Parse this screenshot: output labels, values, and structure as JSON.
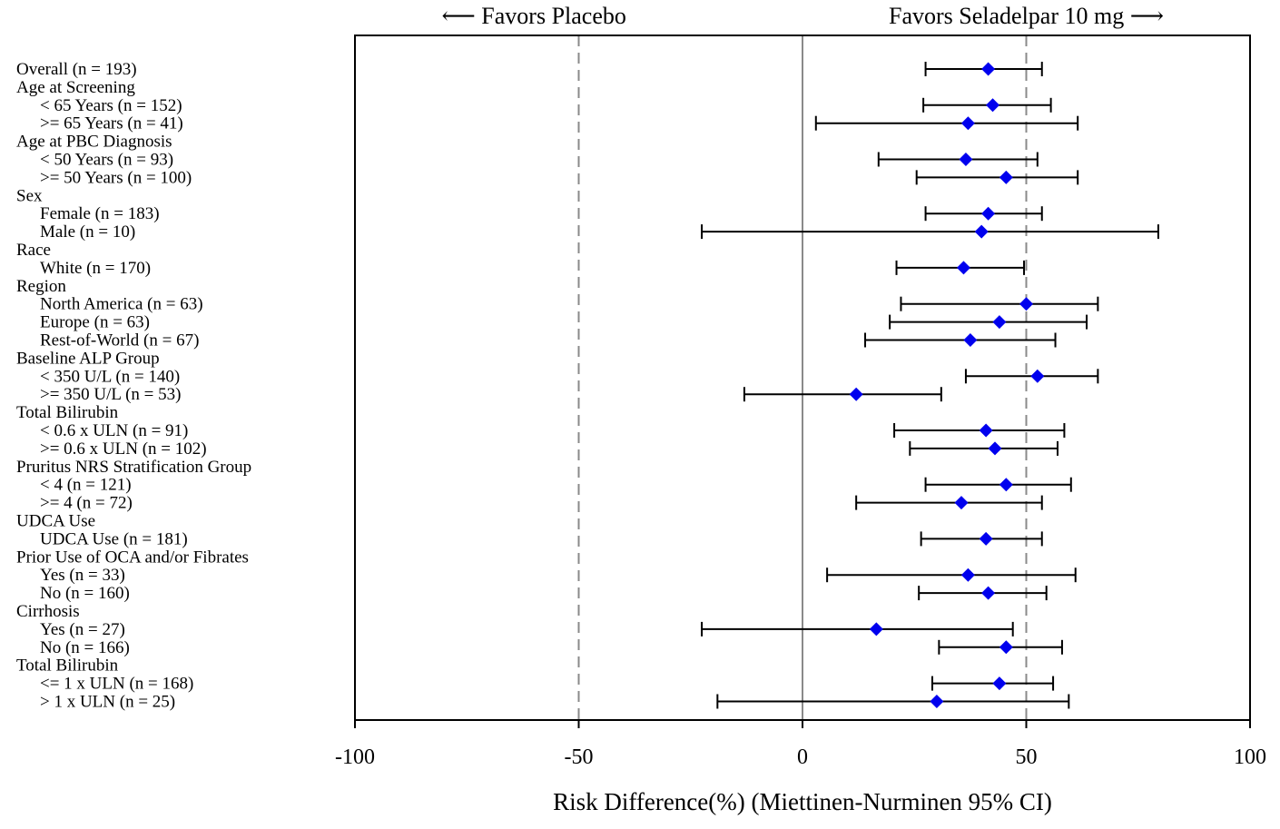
{
  "chart_data": {
    "type": "forest",
    "xlabel": "Risk Difference(%) (Miettinen-Nurminen 95% CI)",
    "xlim": [
      -100,
      100
    ],
    "xticks": [
      -100,
      -50,
      0,
      50,
      100
    ],
    "xtick_labels": [
      "-100",
      "-50",
      "0",
      "50",
      "100"
    ],
    "favors_left": "⟵ Favors Placebo",
    "favors_right": "Favors Seladelpar 10 mg ⟶",
    "reference_lines": [
      {
        "x": -50,
        "style": "dashed"
      },
      {
        "x": 0,
        "style": "solid"
      },
      {
        "x": 50,
        "style": "dashed"
      }
    ],
    "marker_color": "#0000ee",
    "rows": [
      {
        "label": "Overall (n = 193)",
        "indent": 0,
        "est": 41.5,
        "lo": 27.5,
        "hi": 53.5
      },
      {
        "label": "Age at Screening",
        "indent": 0
      },
      {
        "label": "< 65 Years (n = 152)",
        "indent": 1,
        "est": 42.5,
        "lo": 27,
        "hi": 55.5
      },
      {
        "label": ">= 65 Years (n = 41)",
        "indent": 1,
        "est": 37,
        "lo": 3,
        "hi": 61.5
      },
      {
        "label": "Age at PBC Diagnosis",
        "indent": 0
      },
      {
        "label": "< 50 Years (n = 93)",
        "indent": 1,
        "est": 36.5,
        "lo": 17,
        "hi": 52.5
      },
      {
        "label": ">= 50 Years (n = 100)",
        "indent": 1,
        "est": 45.5,
        "lo": 25.5,
        "hi": 61.5
      },
      {
        "label": "Sex",
        "indent": 0
      },
      {
        "label": "Female (n = 183)",
        "indent": 1,
        "est": 41.5,
        "lo": 27.5,
        "hi": 53.5
      },
      {
        "label": "Male (n = 10)",
        "indent": 1,
        "est": 40,
        "lo": -22.5,
        "hi": 79.5
      },
      {
        "label": "Race",
        "indent": 0
      },
      {
        "label": "White (n = 170)",
        "indent": 1,
        "est": 36,
        "lo": 21,
        "hi": 49.5
      },
      {
        "label": "Region",
        "indent": 0
      },
      {
        "label": "North America (n = 63)",
        "indent": 1,
        "est": 50,
        "lo": 22,
        "hi": 66
      },
      {
        "label": "Europe (n = 63)",
        "indent": 1,
        "est": 44,
        "lo": 19.5,
        "hi": 63.5
      },
      {
        "label": "Rest-of-World (n = 67)",
        "indent": 1,
        "est": 37.5,
        "lo": 14,
        "hi": 56.5
      },
      {
        "label": "Baseline ALP Group",
        "indent": 0
      },
      {
        "label": "< 350 U/L (n = 140)",
        "indent": 1,
        "est": 52.5,
        "lo": 36.5,
        "hi": 66
      },
      {
        "label": ">= 350 U/L (n = 53)",
        "indent": 1,
        "est": 12,
        "lo": -13,
        "hi": 31
      },
      {
        "label": "Total Bilirubin",
        "indent": 0
      },
      {
        "label": "< 0.6 x ULN (n = 91)",
        "indent": 1,
        "est": 41,
        "lo": 20.5,
        "hi": 58.5
      },
      {
        "label": ">= 0.6 x ULN (n = 102)",
        "indent": 1,
        "est": 43,
        "lo": 24,
        "hi": 57
      },
      {
        "label": "Pruritus NRS Stratification Group",
        "indent": 0
      },
      {
        "label": "< 4 (n = 121)",
        "indent": 1,
        "est": 45.5,
        "lo": 27.5,
        "hi": 60
      },
      {
        "label": ">= 4 (n = 72)",
        "indent": 1,
        "est": 35.5,
        "lo": 12,
        "hi": 53.5
      },
      {
        "label": "UDCA Use",
        "indent": 0
      },
      {
        "label": "UDCA Use (n = 181)",
        "indent": 1,
        "est": 41,
        "lo": 26.5,
        "hi": 53.5
      },
      {
        "label": "Prior Use of OCA and/or Fibrates",
        "indent": 0
      },
      {
        "label": "Yes (n = 33)",
        "indent": 1,
        "est": 37,
        "lo": 5.5,
        "hi": 61
      },
      {
        "label": "No (n = 160)",
        "indent": 1,
        "est": 41.5,
        "lo": 26,
        "hi": 54.5
      },
      {
        "label": "Cirrhosis",
        "indent": 0
      },
      {
        "label": "Yes (n = 27)",
        "indent": 1,
        "est": 16.5,
        "lo": -22.5,
        "hi": 47
      },
      {
        "label": "No (n = 166)",
        "indent": 1,
        "est": 45.5,
        "lo": 30.5,
        "hi": 58
      },
      {
        "label": "Total Bilirubin",
        "indent": 0
      },
      {
        "label": "<= 1 x ULN (n = 168)",
        "indent": 1,
        "est": 44,
        "lo": 29,
        "hi": 56
      },
      {
        "label": "> 1 x ULN (n = 25)",
        "indent": 1,
        "est": 30,
        "lo": -19,
        "hi": 59.5
      }
    ]
  }
}
